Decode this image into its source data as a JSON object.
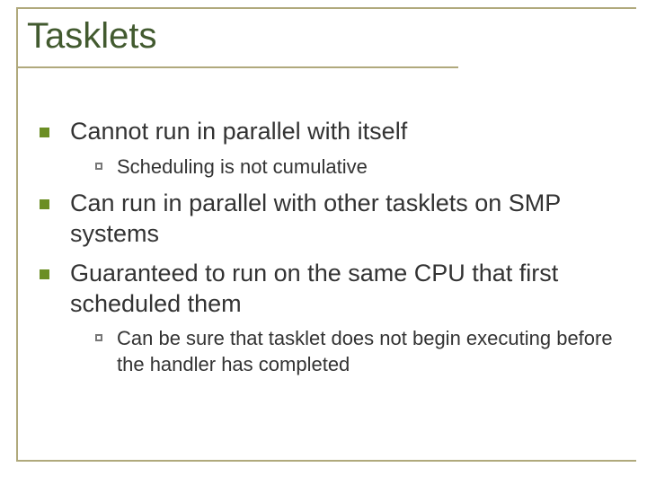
{
  "colors": {
    "rule": "#b0a97c",
    "title": "#425a2f",
    "bullet_filled": "#6b8e23",
    "bullet_outline": "#777777",
    "text": "#333333",
    "background": "#ffffff"
  },
  "title": "Tasklets",
  "bullets": [
    {
      "text": "Cannot run in parallel with itself",
      "sub": [
        {
          "text": "Scheduling is not cumulative"
        }
      ]
    },
    {
      "text": "Can run in parallel with other tasklets on SMP systems",
      "sub": []
    },
    {
      "text": "Guaranteed to run on the same CPU that first scheduled them",
      "sub": [
        {
          "text": "Can be sure that tasklet does not begin executing before the handler has completed"
        }
      ]
    }
  ]
}
